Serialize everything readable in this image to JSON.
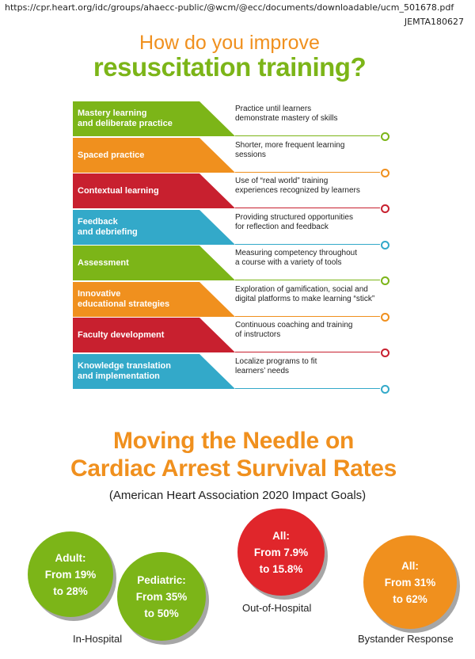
{
  "header": {
    "url": "https://cpr.heart.org/idc/groups/ahaecc-public/@wcm/@ecc/documents/downloadable/ucm_501678.pdf",
    "doc_id": "JEMTA180627"
  },
  "title": {
    "line1": "How do you improve",
    "line2": "resuscitation training?"
  },
  "rows": [
    {
      "label1": "Mastery learning",
      "label2": "and deliberate practice",
      "desc1": "Practice until learners",
      "desc2": "demonstrate mastery of skills",
      "color": "#7cb518"
    },
    {
      "label1": "Spaced practice",
      "label2": "",
      "desc1": "Shorter, more frequent learning",
      "desc2": "sessions",
      "color": "#f0901e"
    },
    {
      "label1": "Contextual learning",
      "label2": "",
      "desc1": "Use of “real world” training",
      "desc2": "experiences recognized by learners",
      "color": "#c8202f"
    },
    {
      "label1": "Feedback",
      "label2": "and debriefing",
      "desc1": "Providing structured opportunities",
      "desc2": "for reflection and feedback",
      "color": "#33a9c9"
    },
    {
      "label1": "Assessment",
      "label2": "",
      "desc1": "Measuring competency throughout",
      "desc2": "a course with a variety of tools",
      "color": "#7cb518"
    },
    {
      "label1": "Innovative",
      "label2": "educational strategies",
      "desc1": "Exploration of gamification, social and",
      "desc2": "digital platforms to make learning “stick”",
      "color": "#f0901e"
    },
    {
      "label1": "Faculty development",
      "label2": "",
      "desc1": "Continuous coaching and training",
      "desc2": "of instructors",
      "color": "#c8202f"
    },
    {
      "label1": "Knowledge translation",
      "label2": "and implementation",
      "desc1": "Localize programs to fit",
      "desc2": "learners’ needs",
      "color": "#33a9c9"
    }
  ],
  "section2": {
    "title1": "Moving the Needle on",
    "title2": "Cardiac Arrest Survival Rates",
    "subtitle": "(American Heart Association 2020 Impact Goals)"
  },
  "circles": {
    "adult": {
      "l1": "Adult:",
      "l2": "From 19%",
      "l3": "to 28%",
      "color": "#7cb518"
    },
    "pediatric": {
      "l1": "Pediatric:",
      "l2": "From 35%",
      "l3": "to 50%",
      "color": "#7cb518"
    },
    "out_of_hospital": {
      "l1": "All:",
      "l2": "From 7.9%",
      "l3": "to 15.8%",
      "color": "#e0262b"
    },
    "bystander": {
      "l1": "All:",
      "l2": "From 31%",
      "l3": "to 62%",
      "color": "#f0901e"
    }
  },
  "labels": {
    "in_hospital": "In-Hospital",
    "out_of_hospital": "Out-of-Hospital",
    "bystander": "Bystander Response"
  }
}
